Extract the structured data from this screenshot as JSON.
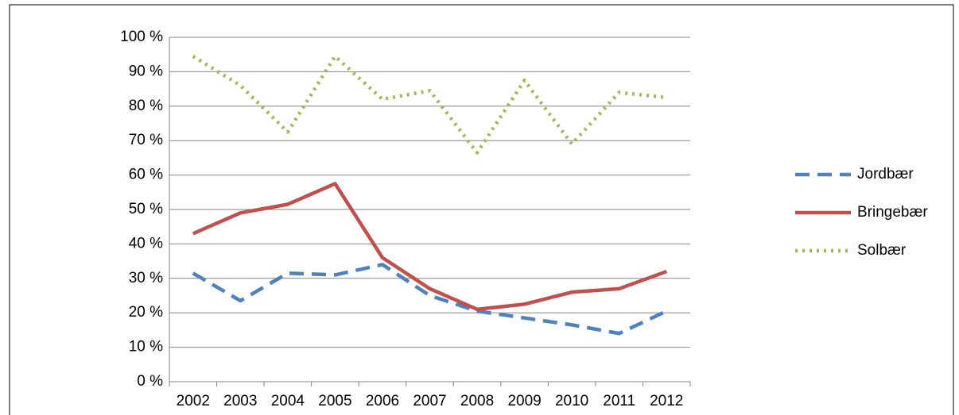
{
  "chart_data": {
    "type": "line",
    "categories": [
      "2002",
      "2003",
      "2004",
      "2005",
      "2006",
      "2007",
      "2008",
      "2009",
      "2010",
      "2011",
      "2012"
    ],
    "series": [
      {
        "name": "Jordbær",
        "color": "#4f81bd",
        "dash": "dashed",
        "values": [
          31.5,
          23.5,
          31.5,
          31,
          34,
          25,
          20.5,
          18.5,
          16.5,
          14,
          20.5
        ]
      },
      {
        "name": "Bringebær",
        "color": "#c0504d",
        "dash": "solid",
        "values": [
          43,
          49,
          51.5,
          57.5,
          36,
          27,
          21,
          22.5,
          26,
          27,
          32
        ]
      },
      {
        "name": "Solbær",
        "color": "#9bbb59",
        "dash": "dotted",
        "values": [
          94.5,
          86,
          72.5,
          94.5,
          82,
          84.5,
          66.5,
          87.5,
          69,
          84,
          82.5
        ]
      }
    ],
    "ylim": [
      0,
      100
    ],
    "yticks": [
      {
        "value": 0,
        "label": "0 %"
      },
      {
        "value": 10,
        "label": "10 %"
      },
      {
        "value": 20,
        "label": "20 %"
      },
      {
        "value": 30,
        "label": "30 %"
      },
      {
        "value": 40,
        "label": "40 %"
      },
      {
        "value": 50,
        "label": "50 %"
      },
      {
        "value": 60,
        "label": "60 %"
      },
      {
        "value": 70,
        "label": "70 %"
      },
      {
        "value": 80,
        "label": "80 %"
      },
      {
        "value": 90,
        "label": "90 %"
      },
      {
        "value": 100,
        "label": "100 %"
      }
    ],
    "grid": true,
    "legend": "right"
  }
}
